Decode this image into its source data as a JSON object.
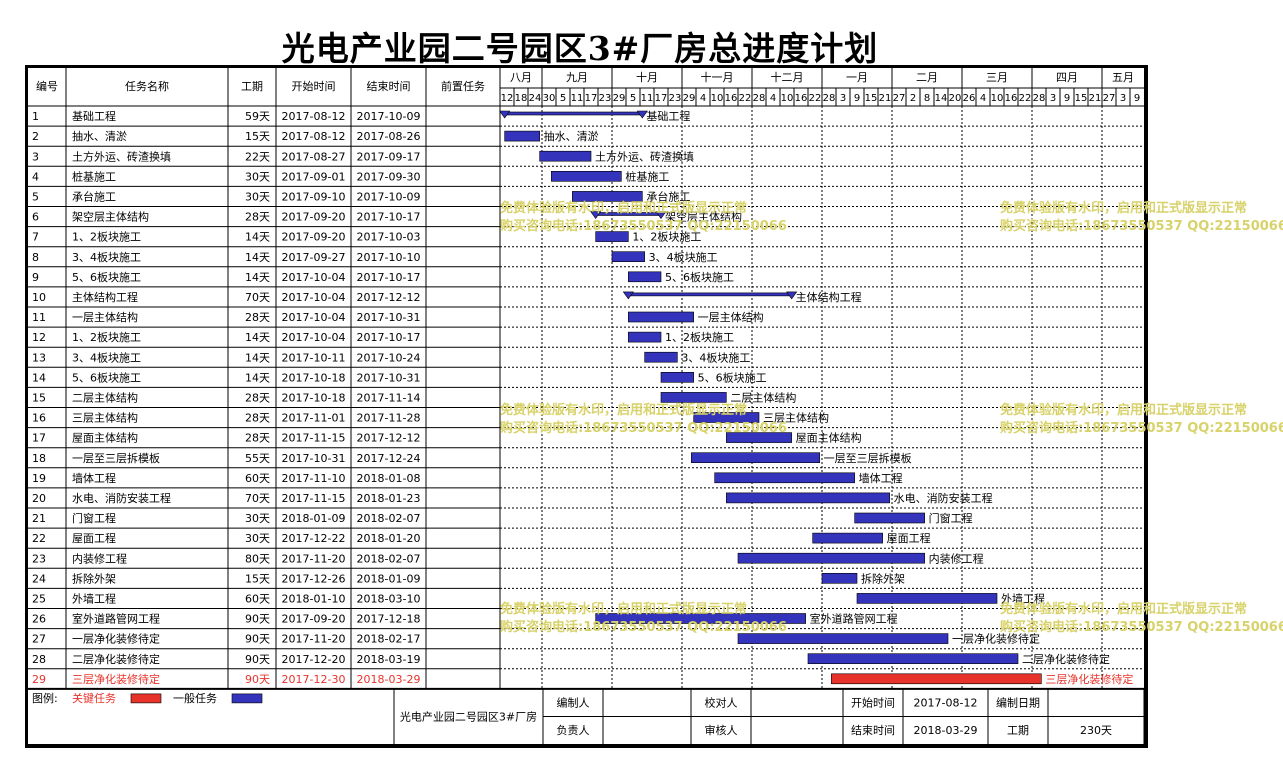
{
  "title": "光电产业园二号园区3#厂房总进度计划",
  "headers": {
    "id": "编号",
    "name": "任务名称",
    "duration": "工期",
    "start": "开始时间",
    "end": "结束时间",
    "pred": "前置任务"
  },
  "colors": {
    "normal": "#3333bb",
    "critical": "#e8332b",
    "critical_text": "#e8332b",
    "grid": "#000000"
  },
  "chart_data": {
    "type": "gantt",
    "timeline": {
      "months": [
        {
          "label": "八月",
          "days": [
            12,
            18,
            24
          ]
        },
        {
          "label": "九月",
          "days": [
            30,
            5,
            11,
            17,
            23
          ]
        },
        {
          "label": "十月",
          "days": [
            29,
            5,
            11,
            17,
            23
          ]
        },
        {
          "label": "十一月",
          "days": [
            29,
            4,
            10,
            16,
            22
          ]
        },
        {
          "label": "十二月",
          "days": [
            28,
            4,
            10,
            16,
            22
          ]
        },
        {
          "label": "一月",
          "days": [
            28,
            3,
            9,
            15,
            21
          ]
        },
        {
          "label": "二月",
          "days": [
            27,
            2,
            8,
            14,
            20
          ]
        },
        {
          "label": "三月",
          "days": [
            26,
            4,
            10,
            16,
            22
          ]
        },
        {
          "label": "四月",
          "days": [
            28,
            3,
            9,
            15,
            21
          ]
        },
        {
          "label": "五月",
          "days": [
            27,
            3,
            9
          ]
        }
      ]
    },
    "tasks": [
      {
        "id": "1",
        "name": "基础工程",
        "duration": "59天",
        "start": "2017-08-12",
        "end": "2017-10-09",
        "summary": true,
        "critical": false
      },
      {
        "id": "2",
        "name": "抽水、清淤",
        "duration": "15天",
        "start": "2017-08-12",
        "end": "2017-08-26",
        "summary": false,
        "critical": false
      },
      {
        "id": "3",
        "name": "土方外运、砖渣换填",
        "duration": "22天",
        "start": "2017-08-27",
        "end": "2017-09-17",
        "summary": false,
        "critical": false
      },
      {
        "id": "4",
        "name": "桩基施工",
        "duration": "30天",
        "start": "2017-09-01",
        "end": "2017-09-30",
        "summary": false,
        "critical": false
      },
      {
        "id": "5",
        "name": "承台施工",
        "duration": "30天",
        "start": "2017-09-10",
        "end": "2017-10-09",
        "summary": false,
        "critical": false
      },
      {
        "id": "6",
        "name": "架空层主体结构",
        "duration": "28天",
        "start": "2017-09-20",
        "end": "2017-10-17",
        "summary": true,
        "critical": false
      },
      {
        "id": "7",
        "name": "1、2板块施工",
        "duration": "14天",
        "start": "2017-09-20",
        "end": "2017-10-03",
        "summary": false,
        "critical": false
      },
      {
        "id": "8",
        "name": "3、4板块施工",
        "duration": "14天",
        "start": "2017-09-27",
        "end": "2017-10-10",
        "summary": false,
        "critical": false
      },
      {
        "id": "9",
        "name": "5、6板块施工",
        "duration": "14天",
        "start": "2017-10-04",
        "end": "2017-10-17",
        "summary": false,
        "critical": false
      },
      {
        "id": "10",
        "name": "主体结构工程",
        "duration": "70天",
        "start": "2017-10-04",
        "end": "2017-12-12",
        "summary": true,
        "critical": false
      },
      {
        "id": "11",
        "name": "一层主体结构",
        "duration": "28天",
        "start": "2017-10-04",
        "end": "2017-10-31",
        "summary": false,
        "critical": false
      },
      {
        "id": "12",
        "name": "1、2板块施工",
        "duration": "14天",
        "start": "2017-10-04",
        "end": "2017-10-17",
        "summary": false,
        "critical": false
      },
      {
        "id": "13",
        "name": "3、4板块施工",
        "duration": "14天",
        "start": "2017-10-11",
        "end": "2017-10-24",
        "summary": false,
        "critical": false
      },
      {
        "id": "14",
        "name": "5、6板块施工",
        "duration": "14天",
        "start": "2017-10-18",
        "end": "2017-10-31",
        "summary": false,
        "critical": false
      },
      {
        "id": "15",
        "name": "二层主体结构",
        "duration": "28天",
        "start": "2017-10-18",
        "end": "2017-11-14",
        "summary": false,
        "critical": false
      },
      {
        "id": "16",
        "name": "三层主体结构",
        "duration": "28天",
        "start": "2017-11-01",
        "end": "2017-11-28",
        "summary": false,
        "critical": false
      },
      {
        "id": "17",
        "name": "屋面主体结构",
        "duration": "28天",
        "start": "2017-11-15",
        "end": "2017-12-12",
        "summary": false,
        "critical": false
      },
      {
        "id": "18",
        "name": "一层至三层拆模板",
        "duration": "55天",
        "start": "2017-10-31",
        "end": "2017-12-24",
        "summary": false,
        "critical": false
      },
      {
        "id": "19",
        "name": "墙体工程",
        "duration": "60天",
        "start": "2017-11-10",
        "end": "2018-01-08",
        "summary": false,
        "critical": false
      },
      {
        "id": "20",
        "name": "水电、消防安装工程",
        "duration": "70天",
        "start": "2017-11-15",
        "end": "2018-01-23",
        "summary": false,
        "critical": false
      },
      {
        "id": "21",
        "name": "门窗工程",
        "duration": "30天",
        "start": "2018-01-09",
        "end": "2018-02-07",
        "summary": false,
        "critical": false
      },
      {
        "id": "22",
        "name": "屋面工程",
        "duration": "30天",
        "start": "2017-12-22",
        "end": "2018-01-20",
        "summary": false,
        "critical": false
      },
      {
        "id": "23",
        "name": "内装修工程",
        "duration": "80天",
        "start": "2017-11-20",
        "end": "2018-02-07",
        "summary": false,
        "critical": false
      },
      {
        "id": "24",
        "name": "拆除外架",
        "duration": "15天",
        "start": "2017-12-26",
        "end": "2018-01-09",
        "summary": false,
        "critical": false
      },
      {
        "id": "25",
        "name": "外墙工程",
        "duration": "60天",
        "start": "2018-01-10",
        "end": "2018-03-10",
        "summary": false,
        "critical": false
      },
      {
        "id": "26",
        "name": "室外道路管网工程",
        "duration": "90天",
        "start": "2017-09-20",
        "end": "2017-12-18",
        "summary": false,
        "critical": false
      },
      {
        "id": "27",
        "name": "一层净化装修待定",
        "duration": "90天",
        "start": "2017-11-20",
        "end": "2018-02-17",
        "summary": false,
        "critical": false
      },
      {
        "id": "28",
        "name": "二层净化装修待定",
        "duration": "90天",
        "start": "2017-12-20",
        "end": "2018-03-19",
        "summary": false,
        "critical": false
      },
      {
        "id": "29",
        "name": "三层净化装修待定",
        "duration": "90天",
        "start": "2017-12-30",
        "end": "2018-03-29",
        "summary": false,
        "critical": true
      }
    ]
  },
  "legend": {
    "label": "图例:",
    "critical": "关键任务",
    "normal": "一般任务"
  },
  "footer": {
    "project": "光电产业园二号园区3#厂房",
    "prepared_by": "编制人",
    "checked_by": "校对人",
    "start_label": "开始时间",
    "start_value": "2017-08-12",
    "prepare_date": "编制日期",
    "responsible": "负责人",
    "reviewer": "审核人",
    "end_label": "结束时间",
    "end_value": "2018-03-29",
    "duration_label": "工期",
    "duration_value": "230天"
  },
  "watermark": {
    "line1": "免费体验版有水印，启用和正式版显示正常",
    "line2": "购买咨询电话:18673550537 QQ:22150066"
  }
}
